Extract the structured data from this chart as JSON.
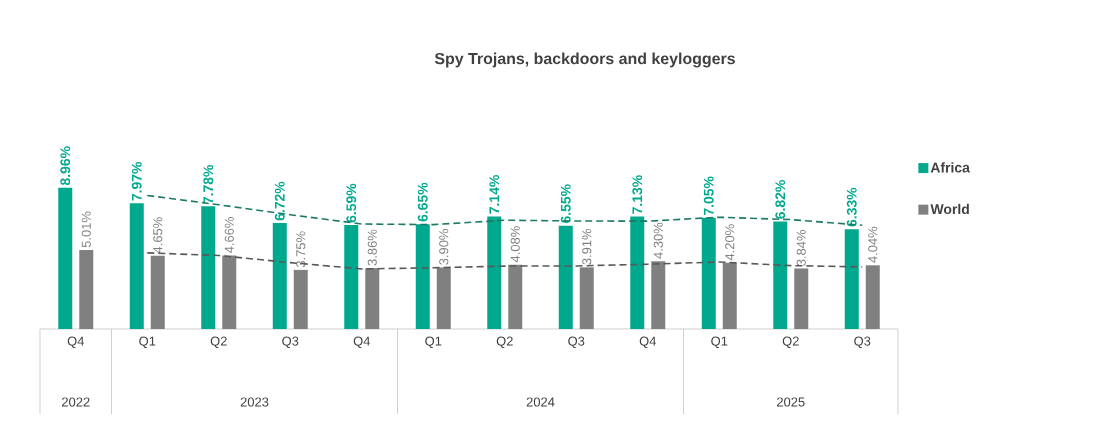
{
  "chart_data": {
    "type": "bar",
    "title": "Spy Trojans, backdoors and keyloggers",
    "categories": [
      "Q4",
      "Q1",
      "Q2",
      "Q3",
      "Q4",
      "Q1",
      "Q2",
      "Q3",
      "Q4",
      "Q1",
      "Q2",
      "Q3"
    ],
    "series": [
      {
        "name": "Africa",
        "color": "#00a88e",
        "values": [
          8.96,
          7.97,
          7.78,
          6.72,
          6.59,
          6.65,
          7.14,
          6.55,
          7.13,
          7.05,
          6.82,
          6.33
        ],
        "value_labels": [
          "8.96%",
          "7.97%",
          "7.78%",
          "6.72%",
          "6.59%",
          "6.65%",
          "7.14%",
          "6.55%",
          "7.13%",
          "7.05%",
          "6.82%",
          "6.33%"
        ]
      },
      {
        "name": "World",
        "color": "#808080",
        "values": [
          5.01,
          4.65,
          4.66,
          3.75,
          3.86,
          3.9,
          4.08,
          3.91,
          4.3,
          4.2,
          3.84,
          4.04
        ],
        "value_labels": [
          "5.01%",
          "4.65%",
          "4.66%",
          "3.75%",
          "3.86%",
          "3.90%",
          "4.08%",
          "3.91%",
          "4.30%",
          "4.20%",
          "3.84%",
          "4.04%"
        ]
      },
      {
        "type": "line",
        "color": "#1b7a63",
        "line_style": "dashed",
        "values": [
          null,
          8.47,
          7.88,
          7.25,
          6.66,
          6.62,
          6.9,
          6.85,
          6.84,
          7.09,
          6.94,
          6.58
        ]
      },
      {
        "type": "line",
        "color": "#595959",
        "line_style": "dashed",
        "values": [
          null,
          4.83,
          4.66,
          4.21,
          3.81,
          3.88,
          3.99,
          4.0,
          4.11,
          4.25,
          4.02,
          3.94
        ]
      }
    ],
    "annotations": [
      "2022",
      "2023",
      "2024",
      "2025"
    ],
    "legend": "right"
  }
}
